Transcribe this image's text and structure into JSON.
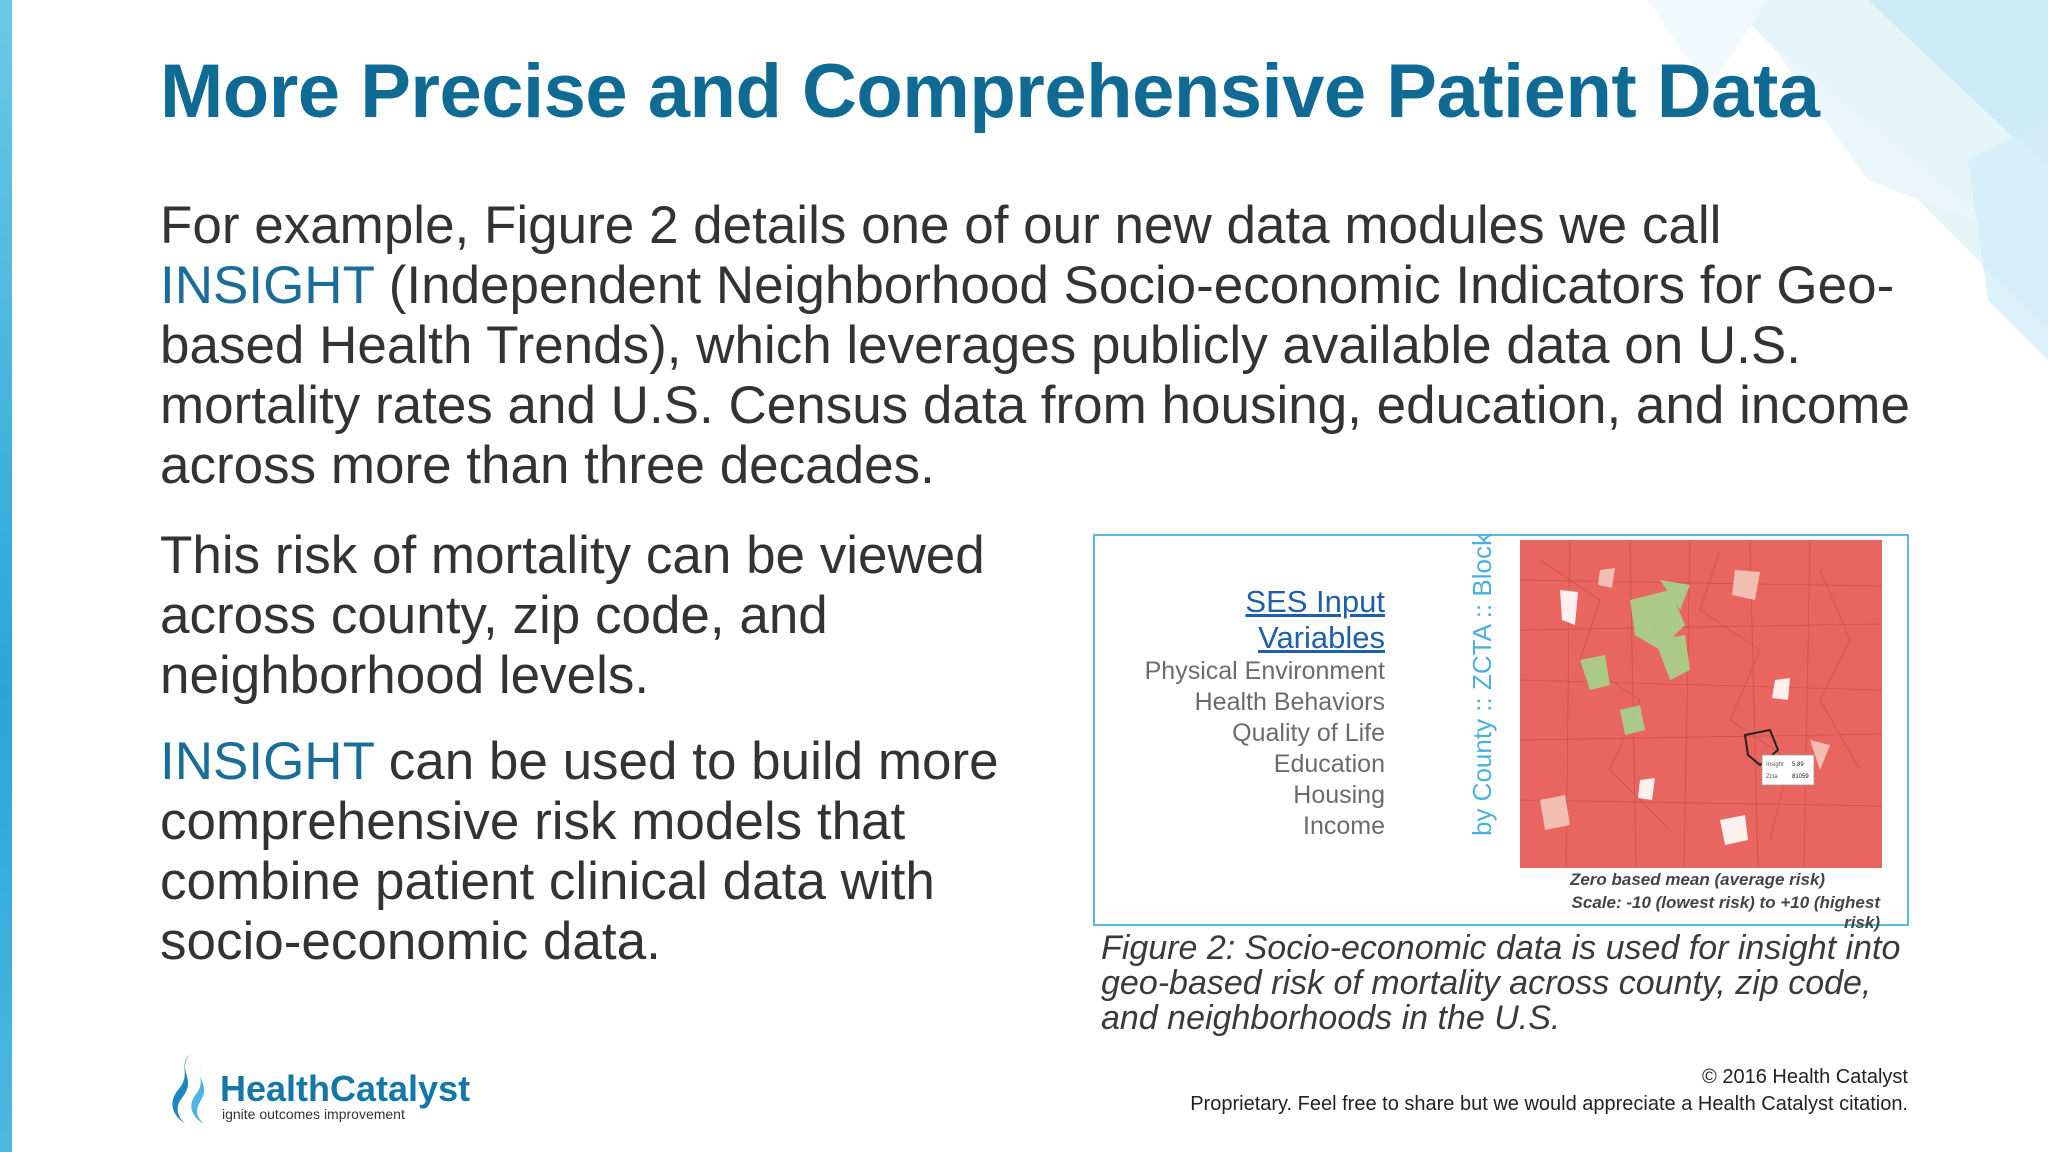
{
  "slide": {
    "title": "More Precise and Comprehensive Patient Data",
    "intro": {
      "part1": "For example, Figure 2 details one of our new data modules we call ",
      "insight": "INSIGHT",
      "part2": " (Independent Neighborhood Socio-economic Indicators for Geo-based Health Trends), which leverages publicly available data on U.S. mortality rates and U.S. Census data from housing, education, and income across more than three decades."
    },
    "para2": "This risk of mortality can be viewed across county, zip code, and neighborhood levels.",
    "para3": {
      "insight": "INSIGHT",
      "rest": " can be used to build more comprehensive risk models that combine patient clinical data with socio-economic data."
    }
  },
  "figure": {
    "ses_title": "SES Input Variables",
    "ses_items": [
      "Physical Environment",
      "Health Behaviors",
      "Quality of Life",
      "Education",
      "Housing",
      "Income"
    ],
    "vertical_label": "by County :: ZCTA :: Block",
    "map_label": "Zero based mean (average risk)",
    "map_scale": "Scale:  -10 (lowest risk) to +10 (highest risk)",
    "tooltip": {
      "row1_label": "Insight",
      "row1_value": "5.89",
      "row2_label": "Zcta",
      "row2_value": "81059"
    },
    "caption": "Figure 2: Socio-economic data is used for insight into geo-based risk of mortality across county, zip code, and neighborhoods in the U.S."
  },
  "footer": {
    "logo_name": "HealthCatalyst",
    "logo_tagline": "ignite outcomes improvement",
    "copyright": "© 2016 Health Catalyst",
    "proprietary": "Proprietary. Feel free to share but we would appreciate a Health Catalyst citation."
  },
  "colors": {
    "title": "#0f6a94",
    "accent": "#1a6d97",
    "map_risk": "#e8665f",
    "map_low": "#a6d58c",
    "frame": "#5bb7dc"
  }
}
